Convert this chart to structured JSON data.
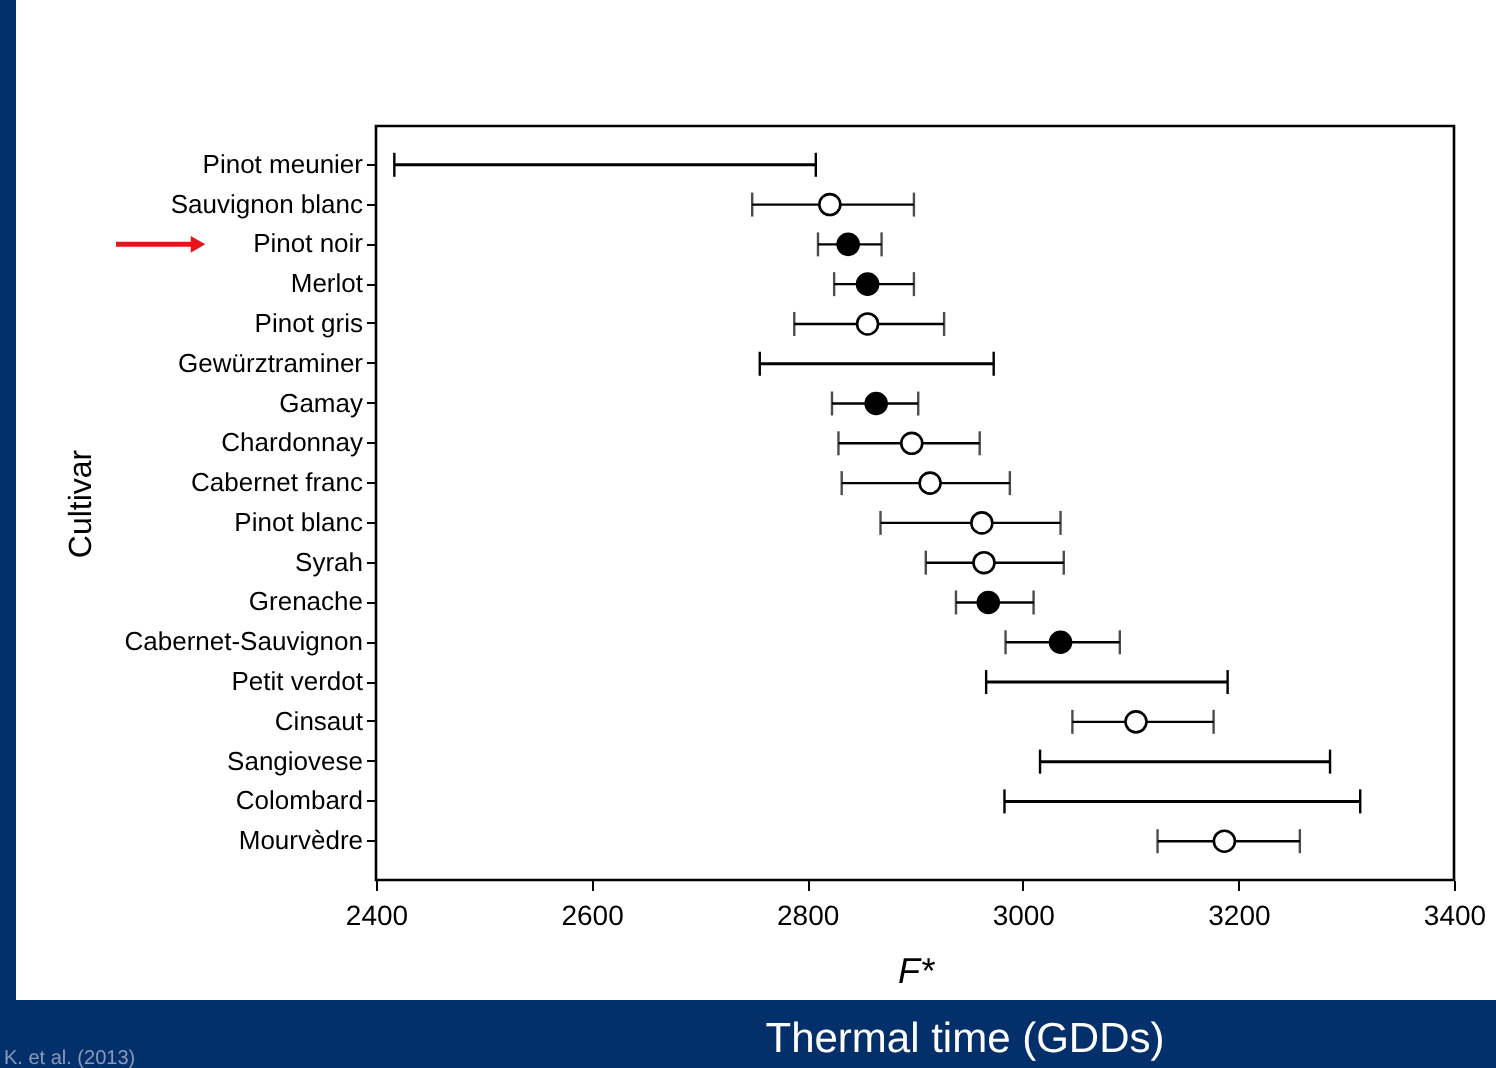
{
  "chart_data": {
    "type": "scatter",
    "title": "Thermal time (GDDs)",
    "xlabel": "F*",
    "ylabel": "Cultivar",
    "categories": [
      "Pinot meunier",
      "Sauvignon blanc",
      "Pinot noir",
      "Merlot",
      "Pinot gris",
      "Gewürztraminer",
      "Gamay",
      "Chardonnay",
      "Cabernet franc",
      "Pinot blanc",
      "Syrah",
      "Grenache",
      "Cabernet-Sauvignon",
      "Petit verdot",
      "Cinsaut",
      "Sangiovese",
      "Colombard",
      "Mourvèdre"
    ],
    "orientation": "horizontal",
    "series": [
      {
        "color": "#000000",
        "marker": "circle",
        "values": [
          null,
          null,
          2838,
          2856,
          null,
          null,
          2864,
          null,
          null,
          null,
          null,
          2968,
          3035,
          null,
          null,
          null,
          null,
          null
        ],
        "errors": [
          null,
          null,
          [
            2810,
            2869
          ],
          [
            2825,
            2899
          ],
          null,
          null,
          [
            2823,
            2903
          ],
          null,
          null,
          null,
          null,
          [
            2938,
            3010
          ],
          [
            2984,
            3090
          ],
          null,
          null,
          null,
          null,
          null
        ]
      },
      {
        "color": "#ffffff",
        "marker": "circle",
        "values": [
          null,
          2821,
          null,
          null,
          2856,
          null,
          null,
          2897,
          2914,
          2962,
          2964,
          null,
          null,
          null,
          3105,
          null,
          null,
          3187
        ],
        "errors": [
          null,
          [
            2749,
            2899
          ],
          null,
          null,
          [
            2788,
            2927
          ],
          null,
          null,
          [
            2829,
            2960
          ],
          [
            2832,
            2988
          ],
          [
            2868,
            3035
          ],
          [
            2910,
            3038
          ],
          null,
          null,
          null,
          [
            3046,
            3177
          ],
          null,
          null,
          [
            3125,
            3257
          ]
        ]
      },
      {
        "type": "bar",
        "color": "#000000",
        "base": [
          2417,
          null,
          null,
          null,
          null,
          2756,
          null,
          null,
          null,
          null,
          null,
          null,
          null,
          2966,
          null,
          3016,
          2983,
          null
        ],
        "values": [
          391,
          null,
          null,
          null,
          null,
          217,
          null,
          null,
          null,
          null,
          null,
          null,
          null,
          224,
          null,
          269,
          330,
          null
        ]
      }
    ],
    "xlim": [
      2400,
      3400
    ],
    "xticks": [
      2400,
      2600,
      2800,
      3000,
      3200,
      3400
    ],
    "grid": false,
    "annotations": [
      "K. et al. (2013)"
    ]
  }
}
